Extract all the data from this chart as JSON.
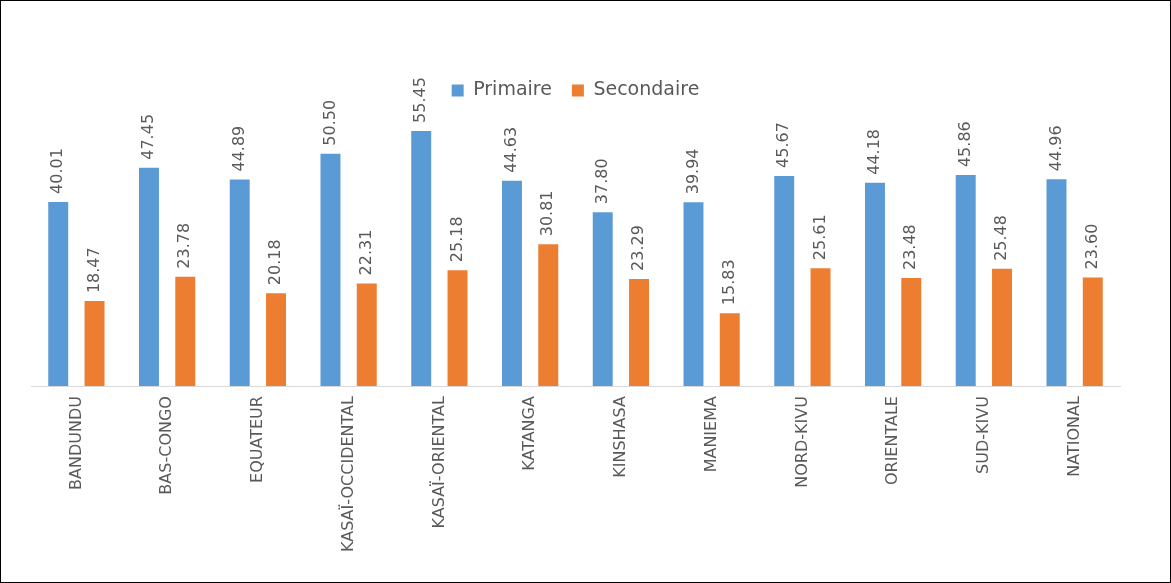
{
  "chart_data": {
    "type": "bar",
    "categories": [
      "BANDUNDU",
      "BAS-CONGO",
      "EQUATEUR",
      "KASAÏ-OCCIDENTAL",
      "KASAÏ-ORIENTAL",
      "KATANGA",
      "KINSHASA",
      "MANIEMA",
      "NORD-KIVU",
      "ORIENTALE",
      "SUD-KIVU",
      "NATIONAL"
    ],
    "series": [
      {
        "name": "Primaire",
        "color": "#5b9bd5",
        "values": [
          40.01,
          47.45,
          44.89,
          50.5,
          55.45,
          44.63,
          37.8,
          39.94,
          45.67,
          44.18,
          45.86,
          44.96
        ],
        "value_labels": [
          "40.01",
          "47.45",
          "44.89",
          "50.50",
          "55.45",
          "44.63",
          "37.80",
          "39.94",
          "45.67",
          "44.18",
          "45.86",
          "44.96"
        ]
      },
      {
        "name": "Secondaire",
        "color": "#ed7d31",
        "values": [
          18.47,
          23.78,
          20.18,
          22.31,
          25.18,
          30.81,
          23.29,
          15.83,
          25.61,
          23.48,
          25.48,
          23.6
        ],
        "value_labels": [
          "18.47",
          "23.78",
          "20.18",
          "22.31",
          "25.18",
          "30.81",
          "23.29",
          "15.83",
          "25.61",
          "23.48",
          "25.48",
          "23.60"
        ]
      }
    ],
    "legend": "top",
    "grid": false
  }
}
